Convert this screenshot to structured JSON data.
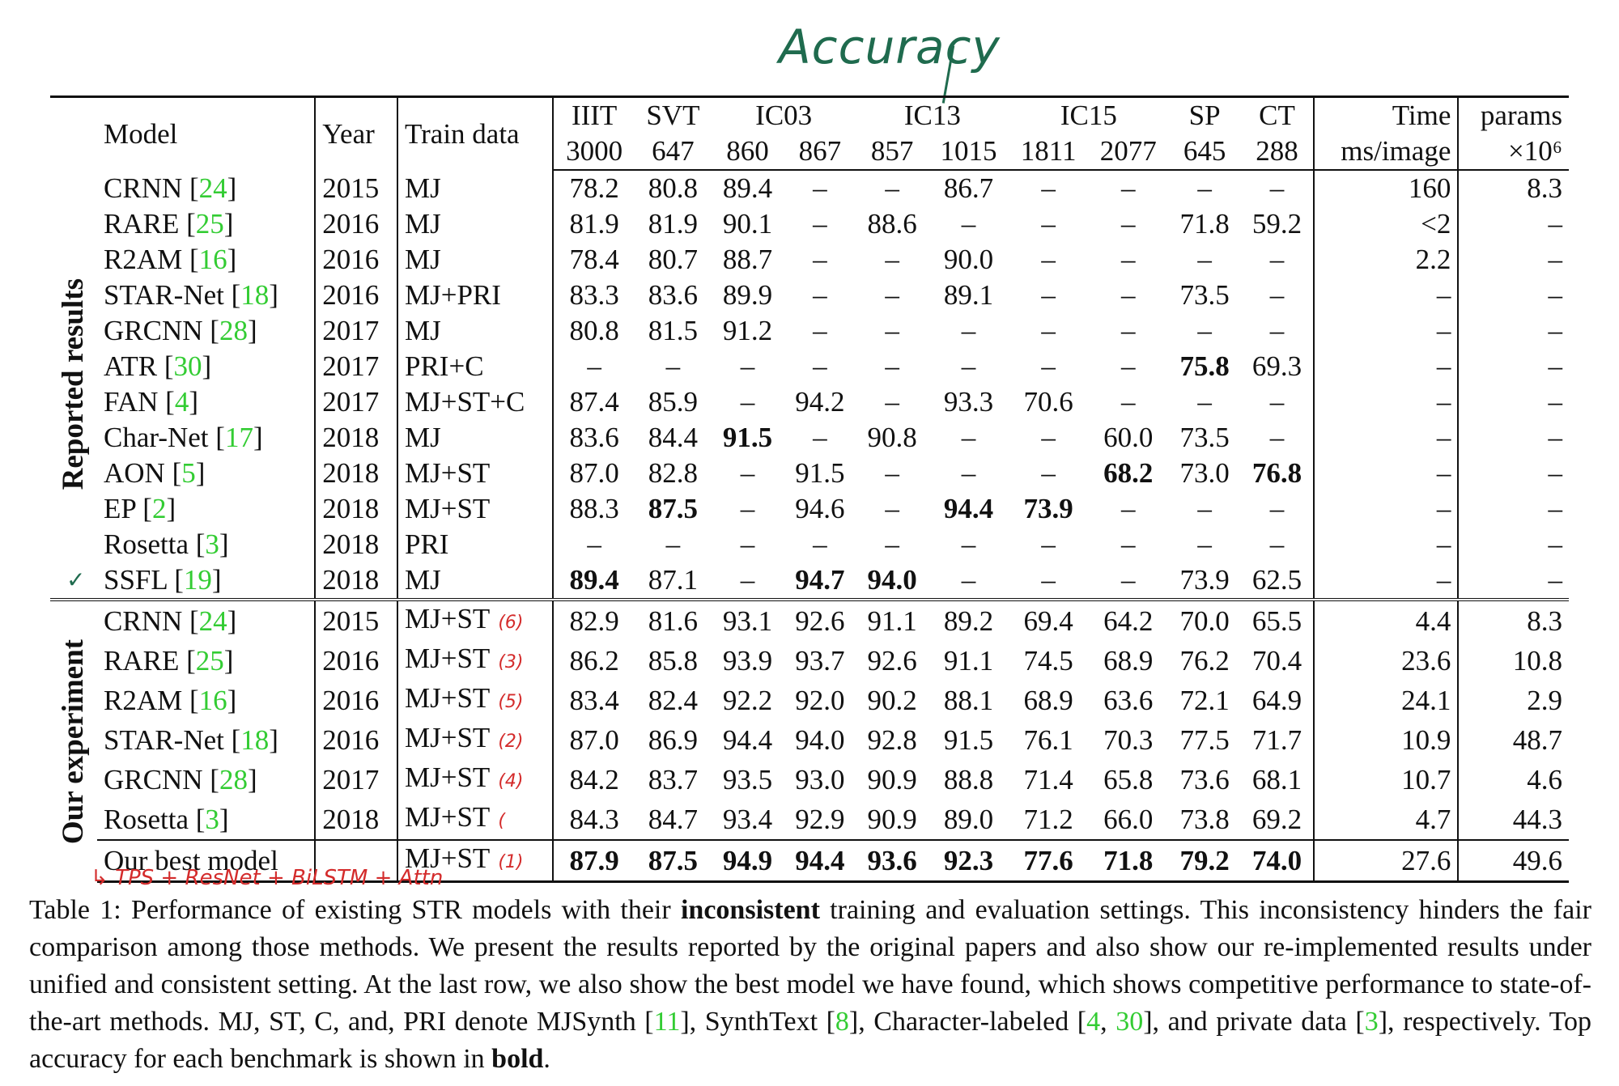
{
  "annotation_accuracy": "Accuracy",
  "annotation_arch": "TPS + ResNet + BiLSTM + Attn",
  "check_mark": "✓",
  "colors": {
    "ref_link": "#33cc33",
    "pen_green": "#1f6b4e",
    "pen_red": "#d42c2c"
  },
  "header": {
    "model": "Model",
    "year": "Year",
    "train": "Train data",
    "benchmarks": [
      {
        "name": "IIIT",
        "sizes": [
          "3000"
        ]
      },
      {
        "name": "SVT",
        "sizes": [
          "647"
        ]
      },
      {
        "name": "IC03",
        "sizes": [
          "860",
          "867"
        ]
      },
      {
        "name": "IC13",
        "sizes": [
          "857",
          "1015"
        ]
      },
      {
        "name": "IC15",
        "sizes": [
          "1811",
          "2077"
        ]
      },
      {
        "name": "SP",
        "sizes": [
          "645"
        ]
      },
      {
        "name": "CT",
        "sizes": [
          "288"
        ]
      }
    ],
    "time_top": "Time",
    "time_bot": "ms/image",
    "params_top": "params",
    "params_bot": "×10⁶"
  },
  "groups": [
    {
      "label": "Reported results",
      "rows": [
        {
          "model": "CRNN",
          "ref": "24",
          "year": "2015",
          "train": "MJ",
          "vals": [
            "78.2",
            "80.8",
            "89.4",
            "–",
            "–",
            "86.7",
            "–",
            "–",
            "–",
            "–"
          ],
          "time": "160",
          "params": "8.3"
        },
        {
          "model": "RARE",
          "ref": "25",
          "year": "2016",
          "train": "MJ",
          "vals": [
            "81.9",
            "81.9",
            "90.1",
            "–",
            "88.6",
            "–",
            "–",
            "–",
            "71.8",
            "59.2"
          ],
          "time": "<2",
          "params": "–"
        },
        {
          "model": "R2AM",
          "ref": "16",
          "year": "2016",
          "train": "MJ",
          "vals": [
            "78.4",
            "80.7",
            "88.7",
            "–",
            "–",
            "90.0",
            "–",
            "–",
            "–",
            "–"
          ],
          "time": "2.2",
          "params": "–"
        },
        {
          "model": "STAR-Net",
          "ref": "18",
          "year": "2016",
          "train": "MJ+PRI",
          "vals": [
            "83.3",
            "83.6",
            "89.9",
            "–",
            "–",
            "89.1",
            "–",
            "–",
            "73.5",
            "–"
          ],
          "time": "–",
          "params": "–"
        },
        {
          "model": "GRCNN",
          "ref": "28",
          "year": "2017",
          "train": "MJ",
          "vals": [
            "80.8",
            "81.5",
            "91.2",
            "–",
            "–",
            "–",
            "–",
            "–",
            "–",
            "–"
          ],
          "time": "–",
          "params": "–"
        },
        {
          "model": "ATR",
          "ref": "30",
          "year": "2017",
          "train": "PRI+C",
          "vals": [
            "–",
            "–",
            "–",
            "–",
            "–",
            "–",
            "–",
            "–",
            "75.8",
            "69.3"
          ],
          "bold": [
            8
          ],
          "time": "–",
          "params": "–"
        },
        {
          "model": "FAN",
          "ref": "4",
          "year": "2017",
          "train": "MJ+ST+C",
          "vals": [
            "87.4",
            "85.9",
            "–",
            "94.2",
            "–",
            "93.3",
            "70.6",
            "–",
            "–",
            "–"
          ],
          "time": "–",
          "params": "–"
        },
        {
          "model": "Char-Net",
          "ref": "17",
          "year": "2018",
          "train": "MJ",
          "vals": [
            "83.6",
            "84.4",
            "91.5",
            "–",
            "90.8",
            "–",
            "–",
            "60.0",
            "73.5",
            "–"
          ],
          "bold": [
            2
          ],
          "time": "–",
          "params": "–"
        },
        {
          "model": "AON",
          "ref": "5",
          "year": "2018",
          "train": "MJ+ST",
          "vals": [
            "87.0",
            "82.8",
            "–",
            "91.5",
            "–",
            "–",
            "–",
            "68.2",
            "73.0",
            "76.8"
          ],
          "bold": [
            7,
            9
          ],
          "time": "–",
          "params": "–"
        },
        {
          "model": "EP",
          "ref": "2",
          "year": "2018",
          "train": "MJ+ST",
          "vals": [
            "88.3",
            "87.5",
            "–",
            "94.6",
            "–",
            "94.4",
            "73.9",
            "–",
            "–",
            "–"
          ],
          "bold": [
            1,
            5,
            6
          ],
          "time": "–",
          "params": "–"
        },
        {
          "model": "Rosetta",
          "ref": "3",
          "year": "2018",
          "train": "PRI",
          "vals": [
            "–",
            "–",
            "–",
            "–",
            "–",
            "–",
            "–",
            "–",
            "–",
            "–"
          ],
          "time": "–",
          "params": "–"
        },
        {
          "model": "SSFL",
          "ref": "19",
          "year": "2018",
          "train": "MJ",
          "check": true,
          "vals": [
            "89.4",
            "87.1",
            "–",
            "94.7",
            "94.0",
            "–",
            "–",
            "–",
            "73.9",
            "62.5"
          ],
          "bold": [
            0,
            3,
            4
          ],
          "time": "–",
          "params": "–"
        }
      ]
    },
    {
      "label": "Our experiment",
      "rows": [
        {
          "model": "CRNN",
          "ref": "24",
          "year": "2015",
          "train": "MJ+ST",
          "anno": "(6)",
          "vals": [
            "82.9",
            "81.6",
            "93.1",
            "92.6",
            "91.1",
            "89.2",
            "69.4",
            "64.2",
            "70.0",
            "65.5"
          ],
          "time": "4.4",
          "params": "8.3"
        },
        {
          "model": "RARE",
          "ref": "25",
          "year": "2016",
          "train": "MJ+ST",
          "anno": "(3)",
          "vals": [
            "86.2",
            "85.8",
            "93.9",
            "93.7",
            "92.6",
            "91.1",
            "74.5",
            "68.9",
            "76.2",
            "70.4"
          ],
          "time": "23.6",
          "params": "10.8"
        },
        {
          "model": "R2AM",
          "ref": "16",
          "year": "2016",
          "train": "MJ+ST",
          "anno": "(5)",
          "vals": [
            "83.4",
            "82.4",
            "92.2",
            "92.0",
            "90.2",
            "88.1",
            "68.9",
            "63.6",
            "72.1",
            "64.9"
          ],
          "time": "24.1",
          "params": "2.9"
        },
        {
          "model": "STAR-Net",
          "ref": "18",
          "year": "2016",
          "train": "MJ+ST",
          "anno": "(2)",
          "vals": [
            "87.0",
            "86.9",
            "94.4",
            "94.0",
            "92.8",
            "91.5",
            "76.1",
            "70.3",
            "77.5",
            "71.7"
          ],
          "time": "10.9",
          "params": "48.7"
        },
        {
          "model": "GRCNN",
          "ref": "28",
          "year": "2017",
          "train": "MJ+ST",
          "anno": "(4)",
          "vals": [
            "84.2",
            "83.7",
            "93.5",
            "93.0",
            "90.9",
            "88.8",
            "71.4",
            "65.8",
            "73.6",
            "68.1"
          ],
          "time": "10.7",
          "params": "4.6"
        },
        {
          "model": "Rosetta",
          "ref": "3",
          "year": "2018",
          "train": "MJ+ST",
          "anno": "(",
          "vals": [
            "84.3",
            "84.7",
            "93.4",
            "92.9",
            "90.9",
            "89.0",
            "71.2",
            "66.0",
            "73.8",
            "69.2"
          ],
          "time": "4.7",
          "params": "44.3"
        },
        {
          "model": "Our best model",
          "ref": "",
          "year": "",
          "train": "MJ+ST",
          "anno": "(1)",
          "best": true,
          "vals": [
            "87.9",
            "87.5",
            "94.9",
            "94.4",
            "93.6",
            "92.3",
            "77.6",
            "71.8",
            "79.2",
            "74.0"
          ],
          "bold": [
            0,
            1,
            2,
            3,
            4,
            5,
            6,
            7,
            8,
            9
          ],
          "time": "27.6",
          "params": "49.6"
        }
      ]
    }
  ],
  "caption": {
    "lead": "Table 1: Performance of existing STR models with their ",
    "bold1": "inconsistent",
    "mid": " training and evaluation settings. This inconsistency hinders the fair comparison among those methods. We present the results reported by the original papers and also show our re-implemented results under unified and consistent setting. At the last row, we also show the best model we have found, which shows competitive performance to state-of-the-art methods. MJ, ST, C, and, PRI denote MJSynth [",
    "r1": "11",
    "t2": "], SynthText [",
    "r2": "8",
    "t3": "], Character-labeled [",
    "r3": "4",
    "t3b": ", ",
    "r4": "30",
    "t4": "], and private data [",
    "r5": "3",
    "t5": "], respectively. Top accuracy for each benchmark is shown in ",
    "bold2": "bold",
    "end": "."
  }
}
